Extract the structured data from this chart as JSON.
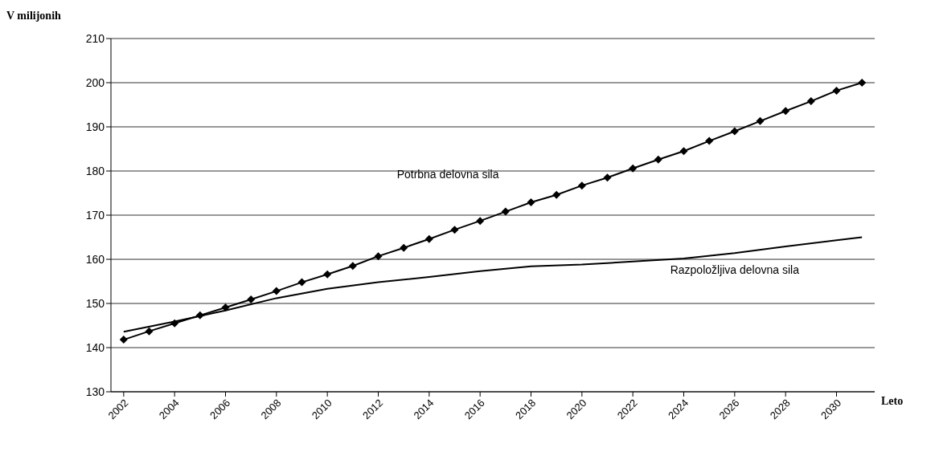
{
  "chart_data": {
    "type": "line",
    "xlabel": "Leto",
    "ylabel": "V milijonih",
    "xlim": [
      2001.5,
      2031.5
    ],
    "xticks": [
      2002,
      2004,
      2006,
      2008,
      2010,
      2012,
      2014,
      2016,
      2018,
      2020,
      2022,
      2024,
      2026,
      2028,
      2030
    ],
    "ylim": [
      130,
      210
    ],
    "yticks": [
      130,
      140,
      150,
      160,
      170,
      180,
      190,
      200,
      210
    ],
    "grid": "y",
    "line_style": "solid",
    "series": [
      {
        "name": "Potrbna delovna sila",
        "color": "#000000",
        "marker": "diamond",
        "x": [
          2002,
          2003,
          2004,
          2005,
          2006,
          2007,
          2008,
          2009,
          2010,
          2011,
          2012,
          2013,
          2014,
          2015,
          2016,
          2017,
          2018,
          2019,
          2020,
          2021,
          2022,
          2023,
          2024,
          2025,
          2026,
          2027,
          2028,
          2029,
          2030,
          2031
        ],
        "values": [
          141.8,
          143.7,
          145.5,
          147.3,
          149.1,
          150.9,
          152.8,
          154.8,
          156.6,
          158.5,
          160.7,
          162.6,
          164.6,
          166.7,
          168.7,
          170.8,
          172.9,
          174.6,
          176.7,
          178.5,
          180.6,
          182.6,
          184.5,
          186.8,
          189.0,
          191.3,
          193.6,
          195.8,
          198.2,
          200.0
        ]
      },
      {
        "name": "Razpoložljiva delovna sila",
        "color": "#000000",
        "marker": "none",
        "x": [
          2002,
          2004,
          2006,
          2008,
          2010,
          2012,
          2014,
          2016,
          2018,
          2020,
          2022,
          2024,
          2026,
          2028,
          2030,
          2031
        ],
        "values": [
          143.6,
          145.9,
          148.4,
          151.2,
          153.3,
          154.8,
          156.0,
          157.3,
          158.4,
          158.8,
          159.5,
          160.2,
          161.4,
          162.9,
          164.3,
          165.0
        ]
      }
    ]
  }
}
